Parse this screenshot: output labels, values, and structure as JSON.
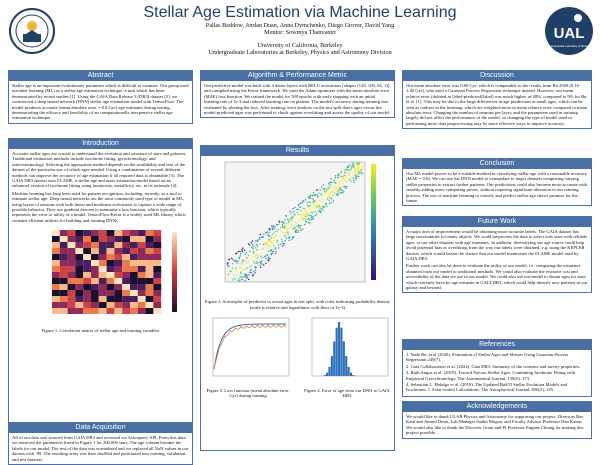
{
  "header": {
    "title": "Stellar Age Estimation via Machine Learning",
    "authors": "Pallas Beddow, Jordan Duan, Anna Dymchenko, Diego Grover, David Yang",
    "mentor": "Mentor: Sowmya Thanvantri",
    "university": "University of California, Berkeley",
    "program": "Undergraduate Laboratories at Berkeley, Physics and Astronomy Division",
    "logo_text": "UAL",
    "logo_sub": "Undergraduate Laboratory at Berkeley"
  },
  "abstract": {
    "title": "Abstract",
    "body": "Stellar age is an important evolutionary parameter which is difficult to estimate. Our group used machine learning (ML) as a stellar age estimation technique, a task which has been demonstrated by recent studies [1]. Using the GAIA Data Release 3 (DR3) dataset [2], we constructed a deep neural network (DNN) stellar age estimation model with TensorFlow. The model produces accurate (mean absolute error = 0.8 Gyr) age estimates during testing, demonstrating the efficacy and feasibility of an computationally inexpensive stellar age estimation technique."
  },
  "introduction": {
    "title": "Introduction",
    "p1": "Accurate stellar ages are crucial to understand the evolution and structure of stars and galaxies. Traditional estimation methods include isochrone fitting, gyrochronology, and asteroseismology. Selecting the appropriate method depends on the availability and size of the dataset of the particular star of which ages needed. Using a combination of several different methods can improve the accuracy of age estimation if all required data is obtainable [3]. The GAIA DR3 dataset uses FLAME, a stellar age and mass estimation model based on an enhanced version of isochrone fitting using luminosity, metallicity, etc. in its rationale [4].",
    "p2": "Machine learning has long been used for pattern recognition, including, recently, as a tool to estimate stellar age. Deep neural networks are the most commonly used type of model in ML, using layers of neurons with both linear and nonlinear activations to capture a wide range of possible behavior. They use gradient descent to minimize a loss function, which typically represents the error or utility of a model. TensorFlow/Keras is a widely used ML library which contains efficient utilities for building and training DNNs.",
    "caption": "Figure 1. Correlation matrix of stellar age and training variables"
  },
  "data_acquisition": {
    "title": "Data Acquisition",
    "body": "All of our data was sourced from GAIA DR3 and accessed via Astroquery API. From this data, we retrieved the parameters listed in Figure 1 for 200,000 stars. The age column became the labels for our model. The rest of the data was normalized and we replaced all NaN values in our dataset with -99. The resulting array was then shuffled and partitioned into training, validation, and test datasets."
  },
  "algorithm": {
    "title": "Algorithm & Performance Metric",
    "body": "Our predictive model was built with 4 dense layers with RELU activations (shapes (128, 100, 64, 1)) and compiled using the Keras framework. We used the Adam optimizer with the mean absolute error (MAE) loss function. We trained the model for 500 epochs with early stopping with an initial learning rate of 1e-3 and reduced learning rate on plateau. The model's accuracy during training was evaluated by plotting the loss. After training, error analysis on the test split data's ages versus the model-predicted ages was performed to check against overfitting and assess the quality of our model."
  },
  "results": {
    "title": "Results",
    "fig2_caption": "Figure 2. Scatterplot of predicted vs actual ages in test split, with color indicating probability density (scale is relative and logarithmic with floor of 1e-3)",
    "fig3_caption": "Figure 3. Loss function (mean absolute error, Gyr) during training",
    "fig4_caption": "Figure 4. Error of age from our DNN to GAIA DR3"
  },
  "discussion": {
    "title": "Discussion",
    "body": "Our mean absolute error was 0.80 Gyr, which is comparable to the results from Bu 2020 (0.16-1.40 Gyr), who used a Gaussian Process Regression technique instead. However, our mean relative error (defined as |label-predicted|/label) was much higher, at 28%, compared to 9% for Bu et al. [1]. This may be due to the large differences in age predictions at small ages, which can be seen as outliers in the heatmap, which are weighted more in mean relative error compared to mean absolute error. Changing the number of neurons per layer, and the parameters used in training largely did not affect the performance of the model, so changing the type of model used or performing more data preprocessing may be more effective ways to improve accuracy."
  },
  "conclusion": {
    "title": "Conclusion",
    "body": "Our ML model proves to be a suitable method in classifying stellar age with a reasonable accuracy (MAE = 0.8). We can use the DNN model to extrapolate to larger datasets comprising varying stellar properties to extract further patterns. Our predictions could also become more accurate with steadily adding more computing power, without requiring significant alteration to our training process. The use of machine learning to classify and predict stellar age shows promise for the future."
  },
  "future_work": {
    "title": "Future Work",
    "p1": "A major area of improvement would be obtaining more accurate labels. The GAIA dataset has large uncertainties for many objects. We could preprocess the data to select only stars with reliable ages, or use other datasets with age estimates. In addition, diversifying our age source could help avoid potential bias or overfitting from the way our labels were obtained, e.g. using the KEPLER dataset, which would lessen the chance that our model memorizes the FLAME model used by GAIA DR3.",
    "p2": "Further work can also be done to evaluate the utility of our model, i.e. comparing the estimates obtained from our model to traditional methods. We could also evaluate the resource cost and accessibility of the data we use in our model. We could also use our model to obtain ages for stars which currently have no age estimate in GAIA DR3, which could help identify new patterns in our galaxy and beyond."
  },
  "references": {
    "title": "References",
    "items": [
      "1.   Yude Bu, et al (2020). Estimation of Stellar Ages and Masses Using Gaussian Process Regression 249(7).",
      "2.   Gaia Collaboration et al. (2022). Gaia DR3: Summary of the contents and survey properties.",
      "3.   Ruth Angus et al. (2019). Toward Precise Stellar Ages: Combining Isochrone Fitting with Empirical Gyrochronology. The Astronomical Journal, 158(5), 173.",
      "4.   Sebastian L. Hidalgo et al. (2018). The Updated BaSTI Stellar Evolution Models and Isochrones. I. Solar-scaled Calculations. The Astrophysical Journal, 856(2), 125."
    ]
  },
  "acknowledgements": {
    "title": "Acknowledgements",
    "body": "We would like to thank ULAB Physics and Astronomy for supporting our project: Directors Rav Kaur and Anmol Desai, Lab Manager Saahit Mogan, and Faculty Advisor Professor Dan Kasen. We would also like to thank the Discover Grant and PI Professor Eugene Chiang for making this project possible."
  },
  "colors": {
    "accent": "#4a6fa5",
    "title": "#1e3f66"
  }
}
